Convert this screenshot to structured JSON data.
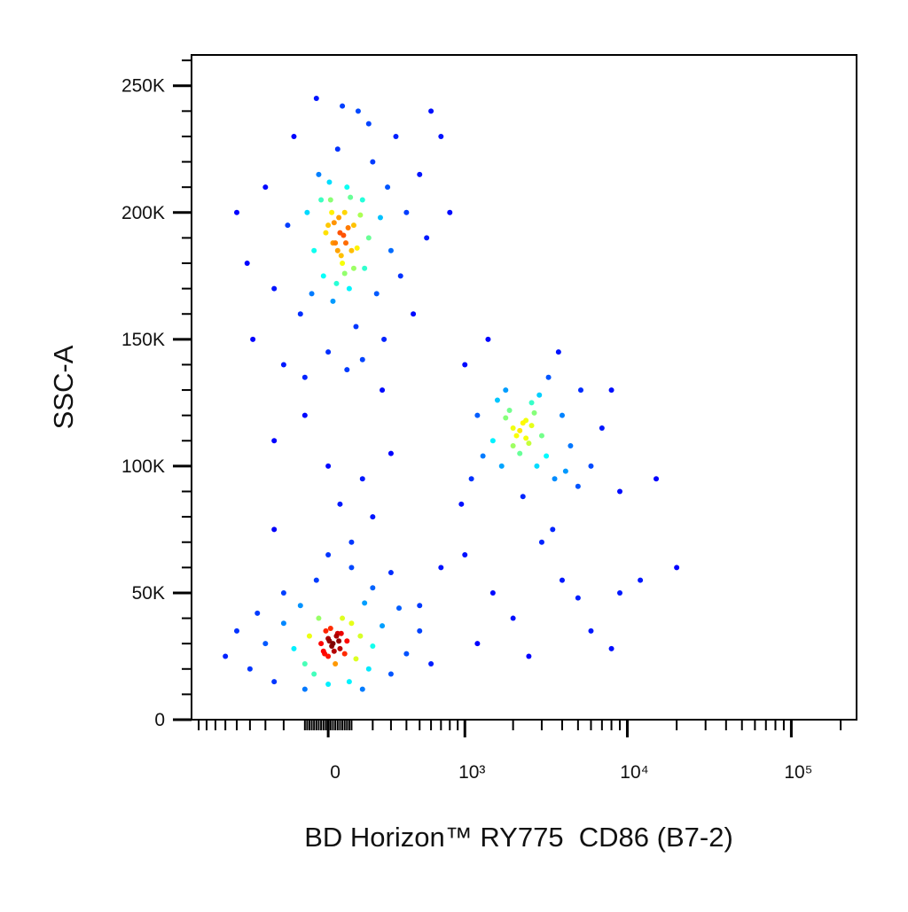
{
  "chart_data": {
    "type": "scatter",
    "xlabel": "BD Horizon™ RY775  CD86 (B7-2)",
    "ylabel": "SSC-A",
    "xscale": "asinh",
    "color_by": "density",
    "xlim": [
      -1000,
      250000
    ],
    "ylim": [
      0,
      262144
    ],
    "xticks": [
      0,
      {
        "value": 1000,
        "label": "10³"
      },
      {
        "value": 10000,
        "label": "10⁴"
      },
      {
        "value": 100000,
        "label": "10⁵"
      }
    ],
    "yticks": [
      0,
      {
        "value": 50000,
        "label": "50K"
      },
      {
        "value": 100000,
        "label": "100K"
      },
      {
        "value": 150000,
        "label": "150K"
      },
      {
        "value": 200000,
        "label": "200K"
      },
      {
        "value": 250000,
        "label": "250K"
      }
    ],
    "x": [
      -420,
      -300,
      -250,
      -180,
      -150,
      -120,
      -90,
      -60,
      -40,
      -20,
      0,
      10,
      20,
      30,
      40,
      50,
      60,
      70,
      80,
      90,
      100,
      110,
      120,
      130,
      150,
      160,
      180,
      200,
      220,
      240,
      260,
      280,
      300,
      330,
      360,
      400,
      450,
      500,
      560,
      -500,
      -380,
      -200,
      -100,
      0,
      80,
      150,
      250,
      -50,
      60,
      180,
      20,
      45,
      70,
      -10,
      95,
      35,
      125,
      -70,
      5,
      85,
      55,
      15,
      110,
      -30,
      65,
      140,
      40,
      25,
      75,
      -250,
      0,
      150,
      -100,
      300,
      50,
      600,
      800,
      700,
      1200,
      1500,
      1800,
      2000,
      2200,
      2400,
      2600,
      2800,
      3000,
      3300,
      3600,
      4000,
      4500,
      5200,
      6000,
      7000,
      1000,
      1100,
      1400,
      1700,
      1900,
      2100,
      2300,
      2500,
      2700,
      2000,
      1600,
      3200,
      2900,
      2200,
      2400,
      1800,
      2600,
      1300,
      3800,
      5000,
      8000,
      9000,
      950,
      2300,
      4200,
      1000,
      1500,
      2000,
      3000,
      4000,
      6000,
      8000,
      1200,
      2500,
      9000,
      12000,
      20000,
      15000,
      700,
      500,
      3500,
      5000,
      -600,
      -500,
      -400,
      -350,
      -300,
      -250,
      -200,
      -150,
      -120,
      -100,
      -80,
      -60,
      -40,
      -20,
      0,
      0,
      10,
      20,
      30,
      40,
      50,
      60,
      70,
      80,
      90,
      100,
      120,
      140,
      160,
      180,
      200,
      250,
      300,
      350,
      400,
      500,
      600,
      -30,
      15,
      35,
      -10,
      25,
      45,
      5,
      -15,
      55,
      -50,
      100,
      200,
      -200,
      0,
      150,
      -100,
      300,
      0,
      100,
      -250,
      200
    ],
    "values": [
      180000,
      210000,
      170000,
      195000,
      230000,
      160000,
      200000,
      185000,
      215000,
      175000,
      195000,
      205000,
      165000,
      188000,
      225000,
      192000,
      180000,
      200000,
      210000,
      170000,
      185000,
      195000,
      155000,
      240000,
      205000,
      178000,
      190000,
      220000,
      168000,
      198000,
      150000,
      210000,
      185000,
      230000,
      175000,
      200000,
      160000,
      215000,
      190000,
      200000,
      150000,
      140000,
      135000,
      145000,
      138000,
      142000,
      130000,
      245000,
      242000,
      235000,
      188000,
      198000,
      176000,
      192000,
      206000,
      172000,
      186000,
      168000,
      212000,
      194000,
      183000,
      200000,
      178000,
      205000,
      191000,
      199000,
      185000,
      196000,
      188000,
      110000,
      100000,
      95000,
      120000,
      105000,
      85000,
      240000,
      200000,
      230000,
      120000,
      110000,
      130000,
      115000,
      105000,
      118000,
      125000,
      100000,
      112000,
      135000,
      95000,
      120000,
      108000,
      130000,
      100000,
      115000,
      140000,
      95000,
      150000,
      100000,
      122000,
      112000,
      117000,
      109000,
      121000,
      108000,
      126000,
      104000,
      128000,
      114000,
      111000,
      119000,
      116000,
      104000,
      145000,
      92000,
      130000,
      90000,
      85000,
      88000,
      98000,
      65000,
      50000,
      40000,
      70000,
      55000,
      35000,
      28000,
      30000,
      25000,
      50000,
      55000,
      60000,
      95000,
      60000,
      45000,
      75000,
      48000,
      25000,
      35000,
      20000,
      42000,
      30000,
      15000,
      38000,
      28000,
      45000,
      22000,
      33000,
      18000,
      40000,
      27000,
      32000,
      25000,
      36000,
      30000,
      22000,
      34000,
      28000,
      40000,
      26000,
      31000,
      15000,
      38000,
      24000,
      33000,
      46000,
      20000,
      29000,
      37000,
      18000,
      44000,
      26000,
      35000,
      22000,
      30000,
      29000,
      33000,
      35000,
      27000,
      31000,
      31000,
      26000,
      34000,
      55000,
      60000,
      52000,
      50000,
      14000,
      12000,
      12000,
      58000,
      65000,
      70000,
      75000,
      80000
    ]
  }
}
